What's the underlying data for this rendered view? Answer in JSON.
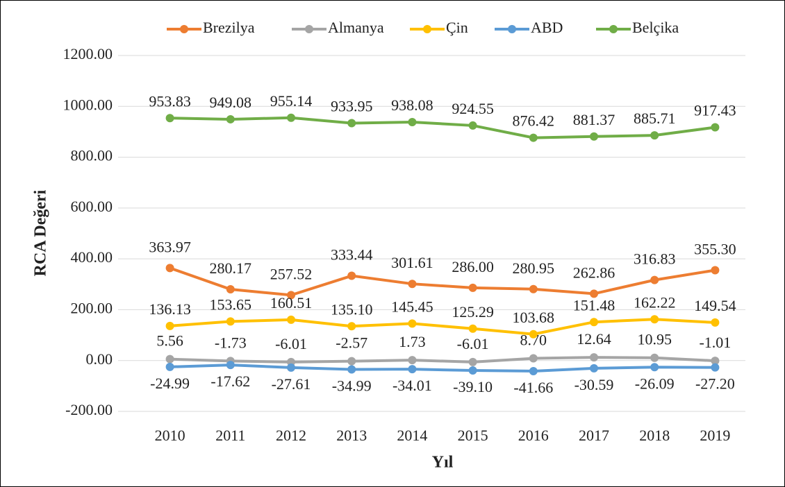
{
  "chart_data": {
    "type": "line",
    "x_label": "Yıl",
    "y_label": "RCA Değeri",
    "categories": [
      "2010",
      "2011",
      "2012",
      "2013",
      "2014",
      "2015",
      "2016",
      "2017",
      "2018",
      "2019"
    ],
    "ylim": [
      -200,
      1200
    ],
    "yticks": [
      {
        "value": -200,
        "label": "-200.00"
      },
      {
        "value": 0,
        "label": "0.00"
      },
      {
        "value": 200,
        "label": "200.00"
      },
      {
        "value": 400,
        "label": "400.00"
      },
      {
        "value": 600,
        "label": "600.00"
      },
      {
        "value": 800,
        "label": "800.00"
      },
      {
        "value": 1000,
        "label": "1000.00"
      },
      {
        "value": 1200,
        "label": "1200.00"
      }
    ],
    "grid": true,
    "legend": "top",
    "series": [
      {
        "name": "Brezilya",
        "color": "#ED7D31",
        "values": [
          363.97,
          280.17,
          257.52,
          333.44,
          301.61,
          286.0,
          280.95,
          262.86,
          316.83,
          355.3
        ],
        "value_labels": [
          "363.97",
          "280.17",
          "257.52",
          "333.44",
          "301.61",
          "286.00",
          "280.95",
          "262.86",
          "316.83",
          "355.30"
        ]
      },
      {
        "name": "Almanya",
        "color": "#A5A5A5",
        "values": [
          5.56,
          -1.73,
          -6.01,
          -2.57,
          1.73,
          -6.01,
          8.7,
          12.64,
          10.95,
          -1.01
        ],
        "value_labels": [
          "5.56",
          "-1.73",
          "-6.01",
          "-2.57",
          "1.73",
          "-6.01",
          "8.70",
          "12.64",
          "10.95",
          "-1.01"
        ]
      },
      {
        "name": "Çin",
        "color": "#FFC000",
        "values": [
          136.13,
          153.65,
          160.51,
          135.1,
          145.45,
          125.29,
          103.68,
          151.48,
          162.22,
          149.54
        ],
        "value_labels": [
          "136.13",
          "153.65",
          "160.51",
          "135.10",
          "145.45",
          "125.29",
          "103.68",
          "151.48",
          "162.22",
          "149.54"
        ]
      },
      {
        "name": "ABD",
        "color": "#5B9BD5",
        "values": [
          -24.99,
          -17.62,
          -27.61,
          -34.99,
          -34.01,
          -39.1,
          -41.66,
          -30.59,
          -26.09,
          -27.2
        ],
        "value_labels": [
          "-24.99",
          "-17.62",
          "-27.61",
          "-34.99",
          "-34.01",
          "-39.10",
          "-41.66",
          "-30.59",
          "-26.09",
          "-27.20"
        ]
      },
      {
        "name": "Belçika",
        "color": "#70AD47",
        "values": [
          953.83,
          949.08,
          955.14,
          933.95,
          938.08,
          924.55,
          876.42,
          881.37,
          885.71,
          917.43
        ],
        "value_labels": [
          "953.83",
          "949.08",
          "955.14",
          "933.95",
          "938.08",
          "924.55",
          "876.42",
          "881.37",
          "885.71",
          "917.43"
        ]
      }
    ]
  }
}
